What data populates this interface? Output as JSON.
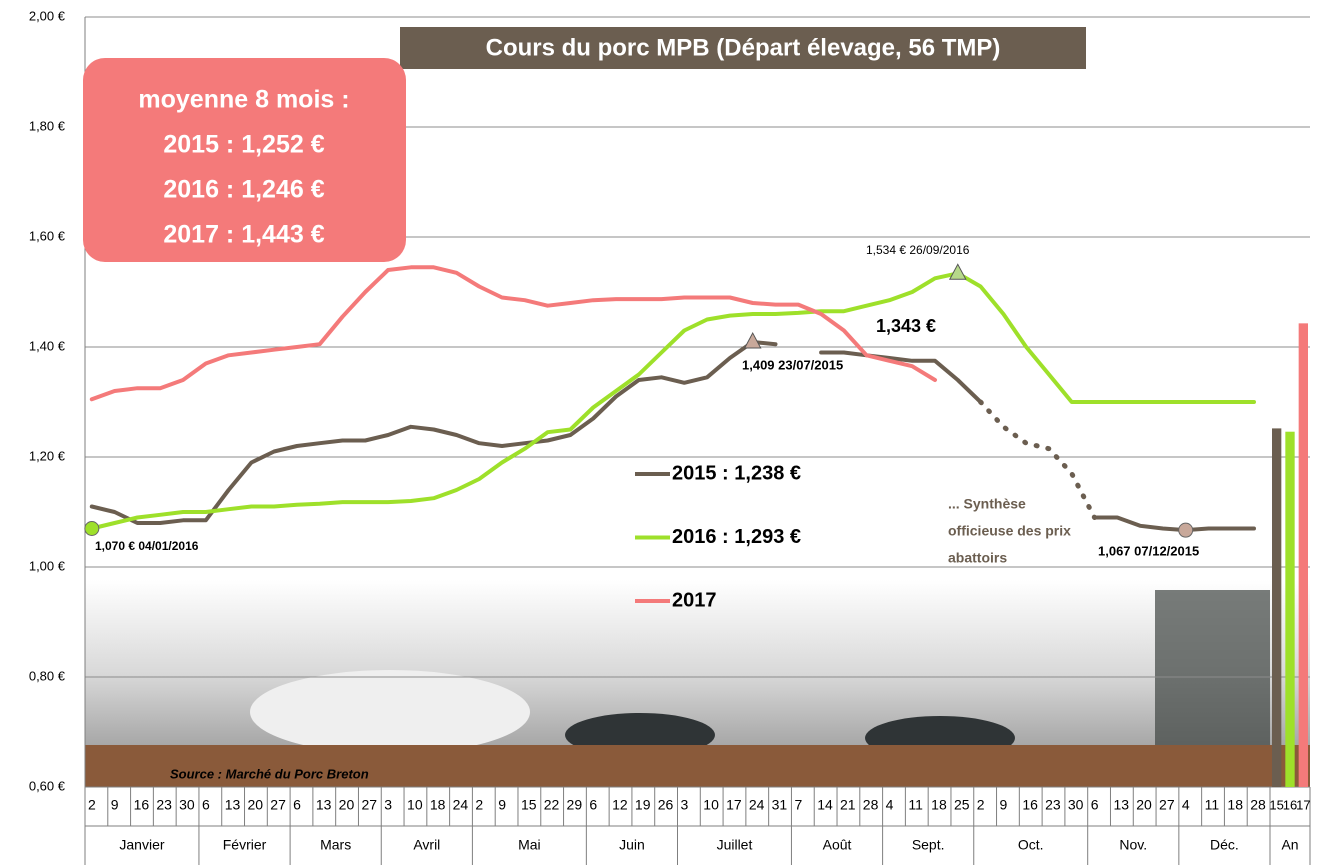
{
  "chart_data": {
    "type": "line",
    "title": "Cours du porc MPB (Départ élevage, 56 TMP)",
    "average_box": [
      "moyenne 8 mois :",
      "2015 : 1,252 €",
      "2016 :  1,246 €",
      "2017 :  1,443 €"
    ],
    "categories": [
      "2",
      "9",
      "16",
      "23",
      "30",
      "6",
      "13",
      "20",
      "27",
      "6",
      "13",
      "20",
      "27",
      "3",
      "10",
      "18",
      "24",
      "2",
      "9",
      "15",
      "22",
      "29",
      "6",
      "12",
      "19",
      "26",
      "3",
      "10",
      "17",
      "24",
      "31",
      "7",
      "14",
      "21",
      "28",
      "4",
      "11",
      "18",
      "25",
      "2",
      "9",
      "16",
      "23",
      "30",
      "6",
      "13",
      "20",
      "27",
      "4",
      "11",
      "18",
      "28"
    ],
    "months": [
      "Janvier",
      "Février",
      "Mars",
      "Avril",
      "Mai",
      "Juin",
      "Juillet",
      "Août",
      "Sept.",
      "Oct.",
      "Nov.",
      "Déc."
    ],
    "ylim": [
      0.6,
      2.0
    ],
    "yticks": [
      {
        "value": 0.6,
        "label": "0,60 €"
      },
      {
        "value": 0.8,
        "label": "0,80 €"
      },
      {
        "value": 1.0,
        "label": "1,00 €"
      },
      {
        "value": 1.2,
        "label": "1,20 €"
      },
      {
        "value": 1.4,
        "label": "1,40 €"
      },
      {
        "value": 1.6,
        "label": "1,60 €"
      },
      {
        "value": 1.8,
        "label": "1,80 €"
      },
      {
        "value": 2.0,
        "label": "2,00 €"
      }
    ],
    "grid": true,
    "series": [
      {
        "name": "2015 : 1,238 €",
        "color": "#6b5e50",
        "values": [
          1.11,
          1.1,
          1.08,
          1.08,
          1.085,
          1.085,
          1.14,
          1.19,
          1.21,
          1.22,
          1.225,
          1.23,
          1.23,
          1.24,
          1.255,
          1.25,
          1.24,
          1.225,
          1.22,
          1.225,
          1.23,
          1.24,
          1.27,
          1.31,
          1.34,
          1.345,
          1.335,
          1.345,
          1.38,
          1.409,
          1.405,
          null,
          1.39,
          1.39,
          1.385,
          1.38,
          1.375,
          1.375,
          1.34,
          1.3,
          null,
          null,
          null,
          null,
          1.09,
          1.09,
          1.075,
          1.07,
          1.067,
          1.07,
          1.07,
          1.07
        ]
      },
      {
        "name": "2016 : 1,293 €",
        "color": "#9ee02a",
        "values": [
          1.07,
          1.08,
          1.09,
          1.095,
          1.1,
          1.1,
          1.105,
          1.11,
          1.11,
          1.113,
          1.115,
          1.118,
          1.118,
          1.118,
          1.12,
          1.125,
          1.14,
          1.16,
          1.19,
          1.215,
          1.245,
          1.25,
          1.29,
          1.32,
          1.35,
          1.39,
          1.43,
          1.45,
          1.457,
          1.46,
          1.46,
          1.462,
          1.465,
          1.465,
          1.475,
          1.485,
          1.5,
          1.525,
          1.534,
          1.51,
          1.46,
          1.4,
          1.35,
          1.3,
          1.3,
          1.3,
          1.3,
          1.3,
          1.3,
          1.3,
          1.3,
          1.3
        ]
      },
      {
        "name": "2017",
        "color": "#f47a7a",
        "values": [
          1.305,
          1.32,
          1.325,
          1.325,
          1.34,
          1.37,
          1.385,
          1.39,
          1.395,
          1.4,
          1.405,
          1.455,
          1.5,
          1.54,
          1.545,
          1.545,
          1.535,
          1.51,
          1.49,
          1.485,
          1.475,
          1.48,
          1.485,
          1.487,
          1.487,
          1.487,
          1.49,
          1.49,
          1.49,
          1.48,
          1.477,
          1.477,
          1.46,
          1.43,
          1.385,
          1.375,
          1.365,
          1.34,
          null,
          null,
          null,
          null,
          null,
          null,
          null,
          null,
          null,
          null,
          null,
          null,
          null,
          null
        ]
      },
      {
        "color": "#6b5e50",
        "line_style": "dotted",
        "values": [
          null,
          null,
          null,
          null,
          null,
          null,
          null,
          null,
          null,
          null,
          null,
          null,
          null,
          null,
          null,
          null,
          null,
          null,
          null,
          null,
          null,
          null,
          null,
          null,
          null,
          null,
          null,
          null,
          null,
          null,
          null,
          null,
          null,
          null,
          null,
          null,
          null,
          null,
          null,
          1.3,
          1.255,
          1.225,
          1.215,
          1.17,
          1.09,
          null,
          null,
          null,
          null,
          null,
          null,
          null
        ]
      }
    ],
    "annual_bars": {
      "group": "An",
      "categories": [
        "15",
        "16",
        "17"
      ],
      "values": [
        1.252,
        1.246,
        1.443
      ],
      "colors": [
        "#6b5e50",
        "#9ee02a",
        "#f47a7a"
      ]
    },
    "annotations": [
      "1,070 € 04/01/2016",
      "1,409 23/07/2015",
      "1,534 € 26/09/2016",
      "1,067 07/12/2015",
      "1,343 €",
      "... Synthèse",
      "officieuse des prix",
      "abattoirs",
      "Source : Marché du Porc Breton"
    ]
  }
}
